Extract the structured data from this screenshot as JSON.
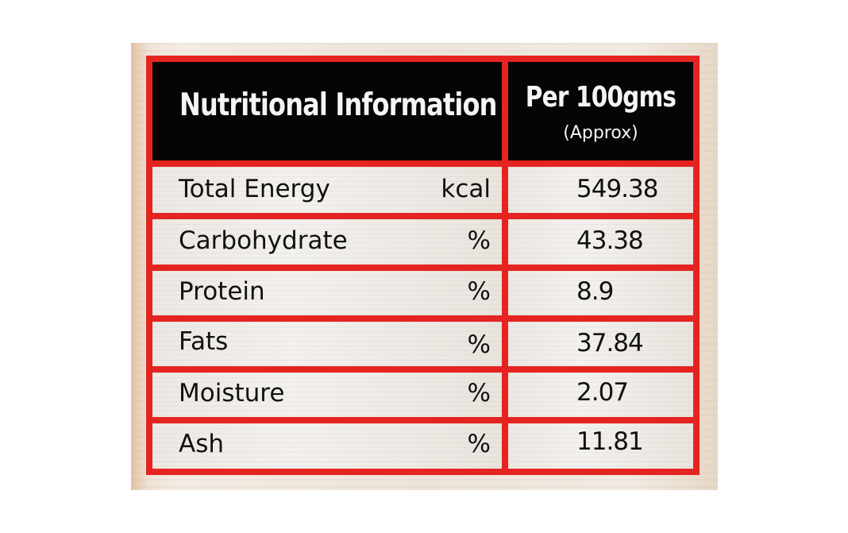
{
  "table": {
    "header": {
      "title": "Nutritional Information",
      "per_label": "Per 100gms",
      "approx_label": "(Approx)"
    },
    "rows": [
      {
        "label": "Total Energy",
        "unit": "kcal",
        "value": "549.38"
      },
      {
        "label": "Carbohydrate",
        "unit": "%",
        "value": "43.38"
      },
      {
        "label": "Protein",
        "unit": "%",
        "value": "8.9"
      },
      {
        "label": "Fats",
        "unit": "%",
        "value": "37.84"
      },
      {
        "label": "Moisture",
        "unit": "%",
        "value": "2.07"
      },
      {
        "label": "Ash",
        "unit": "%",
        "value": "11.81"
      }
    ]
  },
  "colors": {
    "border": "#e52421",
    "header_background": "#050505",
    "header_text": "#f4f4f4",
    "body_text": "#111111"
  }
}
